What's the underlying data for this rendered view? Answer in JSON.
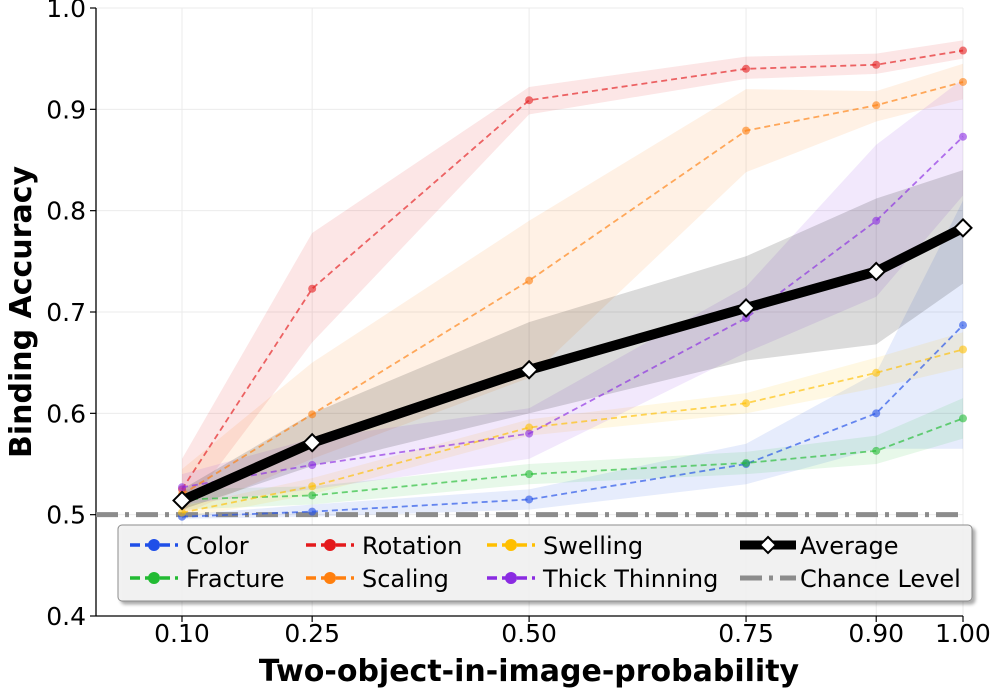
{
  "chart_data": {
    "type": "line",
    "title": "",
    "xlabel": "Two-object-in-image-probability",
    "ylabel": "Binding Accuracy",
    "xlim": [
      0.0,
      1.0
    ],
    "ylim": [
      0.4,
      1.0
    ],
    "x": [
      0.1,
      0.25,
      0.5,
      0.75,
      0.9,
      1.0
    ],
    "xtick_labels": [
      "0.10",
      "0.25",
      "0.50",
      "0.75",
      "0.90",
      "1.00"
    ],
    "yticks": [
      0.4,
      0.5,
      0.6,
      0.7,
      0.8,
      0.9,
      1.0
    ],
    "ytick_labels": [
      "0.4",
      "0.5",
      "0.6",
      "0.7",
      "0.8",
      "0.9",
      "1.0"
    ],
    "grid": true,
    "legend_position": "bottom",
    "series": [
      {
        "name": "Color",
        "color": "#1f4fe8",
        "values": [
          0.498,
          0.503,
          0.515,
          0.55,
          0.6,
          0.687
        ],
        "lower": [
          0.496,
          0.498,
          0.505,
          0.53,
          0.565,
          0.565
        ],
        "upper": [
          0.5,
          0.51,
          0.525,
          0.57,
          0.64,
          0.81
        ]
      },
      {
        "name": "Fracture",
        "color": "#22bb33",
        "values": [
          0.515,
          0.519,
          0.54,
          0.551,
          0.563,
          0.595
        ],
        "lower": [
          0.505,
          0.51,
          0.53,
          0.54,
          0.55,
          0.575
        ],
        "upper": [
          0.525,
          0.528,
          0.55,
          0.562,
          0.578,
          0.615
        ]
      },
      {
        "name": "Rotation",
        "color": "#e41a1c",
        "values": [
          0.525,
          0.723,
          0.909,
          0.94,
          0.944,
          0.958
        ],
        "lower": [
          0.5,
          0.67,
          0.895,
          0.93,
          0.935,
          0.95
        ],
        "upper": [
          0.555,
          0.778,
          0.922,
          0.952,
          0.955,
          0.968
        ]
      },
      {
        "name": "Scaling",
        "color": "#ff7f0e",
        "values": [
          0.52,
          0.599,
          0.731,
          0.879,
          0.904,
          0.927
        ],
        "lower": [
          0.5,
          0.555,
          0.635,
          0.838,
          0.888,
          0.91
        ],
        "upper": [
          0.545,
          0.65,
          0.79,
          0.92,
          0.918,
          0.945
        ]
      },
      {
        "name": "Swelling",
        "color": "#ffbf00",
        "values": [
          0.502,
          0.528,
          0.586,
          0.61,
          0.64,
          0.663
        ],
        "lower": [
          0.496,
          0.52,
          0.578,
          0.6,
          0.625,
          0.645
        ],
        "upper": [
          0.508,
          0.536,
          0.594,
          0.62,
          0.655,
          0.68
        ]
      },
      {
        "name": "Thick Thinning",
        "color": "#8a2be2",
        "values": [
          0.527,
          0.549,
          0.58,
          0.694,
          0.79,
          0.873
        ],
        "lower": [
          0.51,
          0.525,
          0.555,
          0.66,
          0.715,
          0.815
        ],
        "upper": [
          0.54,
          0.575,
          0.605,
          0.725,
          0.865,
          0.93
        ]
      },
      {
        "name": "Average",
        "color": "#000000",
        "values": [
          0.514,
          0.571,
          0.643,
          0.704,
          0.74,
          0.783
        ],
        "lower": [
          0.505,
          0.548,
          0.6,
          0.652,
          0.668,
          0.728
        ],
        "upper": [
          0.525,
          0.6,
          0.69,
          0.755,
          0.812,
          0.84
        ]
      }
    ],
    "chance_level": {
      "name": "Chance Level",
      "value": 0.5,
      "color": "#8c8c8c"
    },
    "legend": [
      "Color",
      "Rotation",
      "Swelling",
      "Average",
      "Fracture",
      "Scaling",
      "Thick Thinning",
      "Chance Level"
    ]
  }
}
